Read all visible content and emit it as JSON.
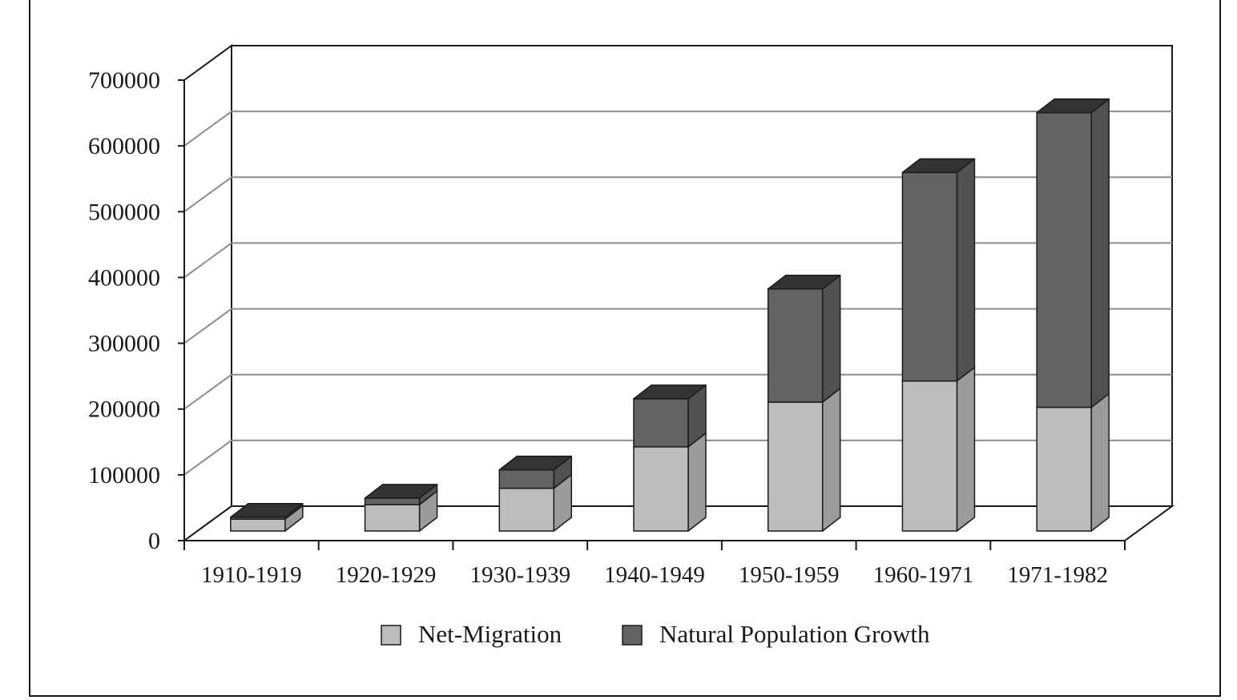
{
  "chart_data": {
    "type": "bar",
    "stacked": true,
    "three_d": true,
    "title": "",
    "xlabel": "",
    "ylabel": "",
    "categories": [
      "1910-1919",
      "1920-1929",
      "1930-1939",
      "1940-1949",
      "1950-1959",
      "1960-1971",
      "1971-1982"
    ],
    "series": [
      {
        "name": "Net-Migration",
        "color": "#bdbdbd",
        "values": [
          18000,
          40000,
          65000,
          128000,
          196000,
          228000,
          188000
        ]
      },
      {
        "name": "Natural Population Growth",
        "color": "#636363",
        "values": [
          3000,
          10000,
          28000,
          73000,
          172000,
          317000,
          448000
        ]
      }
    ],
    "ylim": [
      0,
      700000
    ],
    "yticks": [
      "0",
      "100000",
      "200000",
      "300000",
      "400000",
      "500000",
      "600000",
      "700000"
    ],
    "grid": true,
    "legend": "bottom"
  }
}
